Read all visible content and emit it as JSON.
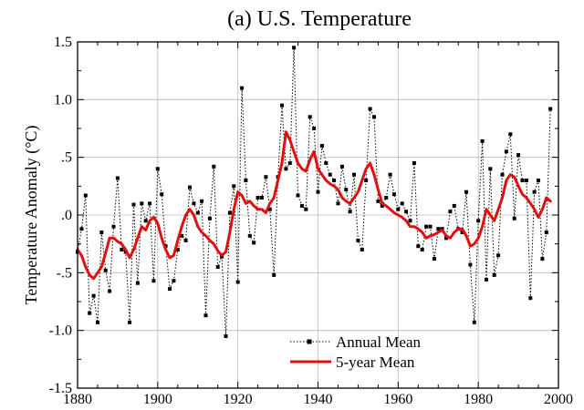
{
  "chart_data": {
    "type": "line",
    "title": "(a)  U.S. Temperature",
    "xlabel": "",
    "ylabel": "Temperature Anomaly (°C)",
    "xlim": [
      1880,
      2000
    ],
    "ylim": [
      -1.5,
      1.5
    ],
    "x_ticks": [
      1880,
      1900,
      1920,
      1940,
      1960,
      1980,
      2000
    ],
    "x_tick_labels": [
      "1880",
      "1900",
      "1920",
      "1940",
      "1960",
      "1980",
      "2000"
    ],
    "y_ticks": [
      -1.5,
      -1.0,
      -0.5,
      0.0,
      0.5,
      1.0,
      1.5
    ],
    "y_tick_labels": [
      "-1.5",
      "-1.0",
      "-.5",
      ".0",
      ".5",
      "1.0",
      "1.5"
    ],
    "grid": true,
    "legend_position": "bottom-center",
    "x": [
      1880,
      1881,
      1882,
      1883,
      1884,
      1885,
      1886,
      1887,
      1888,
      1889,
      1890,
      1891,
      1892,
      1893,
      1894,
      1895,
      1896,
      1897,
      1898,
      1899,
      1900,
      1901,
      1902,
      1903,
      1904,
      1905,
      1906,
      1907,
      1908,
      1909,
      1910,
      1911,
      1912,
      1913,
      1914,
      1915,
      1916,
      1917,
      1918,
      1919,
      1920,
      1921,
      1922,
      1923,
      1924,
      1925,
      1926,
      1927,
      1928,
      1929,
      1930,
      1931,
      1932,
      1933,
      1934,
      1935,
      1936,
      1937,
      1938,
      1939,
      1940,
      1941,
      1942,
      1943,
      1944,
      1945,
      1946,
      1947,
      1948,
      1949,
      1950,
      1951,
      1952,
      1953,
      1954,
      1955,
      1956,
      1957,
      1958,
      1959,
      1960,
      1961,
      1962,
      1963,
      1964,
      1965,
      1966,
      1967,
      1968,
      1969,
      1970,
      1971,
      1972,
      1973,
      1974,
      1975,
      1976,
      1977,
      1978,
      1979,
      1980,
      1981,
      1982,
      1983,
      1984,
      1985,
      1986,
      1987,
      1988,
      1989,
      1990,
      1991,
      1992,
      1993,
      1994,
      1995,
      1996,
      1997,
      1998
    ],
    "series": [
      {
        "name": "Annual Mean",
        "color": "#000000",
        "style": "dotted-with-markers",
        "values": [
          -0.32,
          -0.12,
          0.17,
          -0.85,
          -0.7,
          -0.93,
          -0.15,
          -0.48,
          -0.66,
          -0.1,
          0.32,
          -0.3,
          -0.32,
          -0.93,
          0.09,
          -0.59,
          0.1,
          -0.05,
          0.1,
          -0.57,
          0.4,
          0.18,
          -0.27,
          -0.64,
          -0.57,
          -0.3,
          -0.18,
          -0.22,
          0.24,
          0.1,
          0.02,
          0.12,
          -0.87,
          -0.03,
          0.42,
          -0.45,
          -0.36,
          -1.05,
          0.02,
          0.25,
          -0.58,
          1.1,
          0.3,
          -0.18,
          -0.24,
          0.15,
          0.15,
          0.33,
          0.05,
          -0.52,
          0.33,
          0.95,
          0.4,
          0.45,
          1.45,
          0.17,
          0.08,
          0.05,
          0.85,
          0.75,
          0.2,
          0.6,
          0.45,
          0.35,
          0.3,
          0.1,
          0.42,
          0.22,
          0.03,
          0.35,
          -0.22,
          -0.3,
          0.3,
          0.92,
          0.85,
          0.12,
          0.08,
          0.15,
          0.35,
          0.18,
          0.05,
          0.1,
          0.03,
          -0.05,
          0.45,
          -0.27,
          -0.3,
          -0.1,
          -0.1,
          -0.38,
          -0.12,
          -0.12,
          -0.2,
          0.03,
          0.08,
          -0.12,
          -0.15,
          0.2,
          -0.43,
          -0.93,
          -0.05,
          0.64,
          -0.56,
          0.4,
          -0.52,
          -0.35,
          0.35,
          0.55,
          0.7,
          -0.03,
          0.52,
          0.3,
          0.3,
          -0.72,
          0.2,
          0.3,
          -0.38,
          -0.15,
          0.92
        ]
      },
      {
        "name": "5-year Mean",
        "color": "#e01010",
        "style": "solid",
        "values": [
          -0.3,
          -0.35,
          -0.45,
          -0.52,
          -0.55,
          -0.5,
          -0.45,
          -0.33,
          -0.2,
          -0.2,
          -0.23,
          -0.25,
          -0.3,
          -0.37,
          -0.3,
          -0.2,
          -0.1,
          -0.13,
          -0.05,
          -0.02,
          -0.07,
          -0.2,
          -0.3,
          -0.37,
          -0.35,
          -0.22,
          -0.1,
          0.0,
          0.05,
          0.0,
          -0.1,
          -0.15,
          -0.18,
          -0.22,
          -0.25,
          -0.31,
          -0.35,
          -0.32,
          -0.15,
          0.05,
          0.2,
          0.17,
          0.1,
          0.12,
          0.08,
          0.05,
          0.05,
          0.02,
          0.1,
          0.15,
          0.3,
          0.45,
          0.72,
          0.65,
          0.55,
          0.45,
          0.4,
          0.38,
          0.48,
          0.55,
          0.4,
          0.35,
          0.3,
          0.27,
          0.25,
          0.22,
          0.15,
          0.12,
          0.1,
          0.15,
          0.2,
          0.3,
          0.4,
          0.45,
          0.35,
          0.22,
          0.1,
          0.08,
          0.05,
          0.02,
          0.0,
          -0.02,
          -0.05,
          -0.1,
          -0.1,
          -0.12,
          -0.15,
          -0.2,
          -0.18,
          -0.17,
          -0.15,
          -0.13,
          -0.18,
          -0.2,
          -0.15,
          -0.12,
          -0.12,
          -0.18,
          -0.27,
          -0.25,
          -0.2,
          -0.1,
          0.05,
          0.0,
          -0.05,
          0.05,
          0.15,
          0.3,
          0.35,
          0.33,
          0.25,
          0.18,
          0.15,
          0.1,
          0.05,
          -0.02,
          0.05,
          0.15,
          0.12
        ]
      }
    ]
  }
}
